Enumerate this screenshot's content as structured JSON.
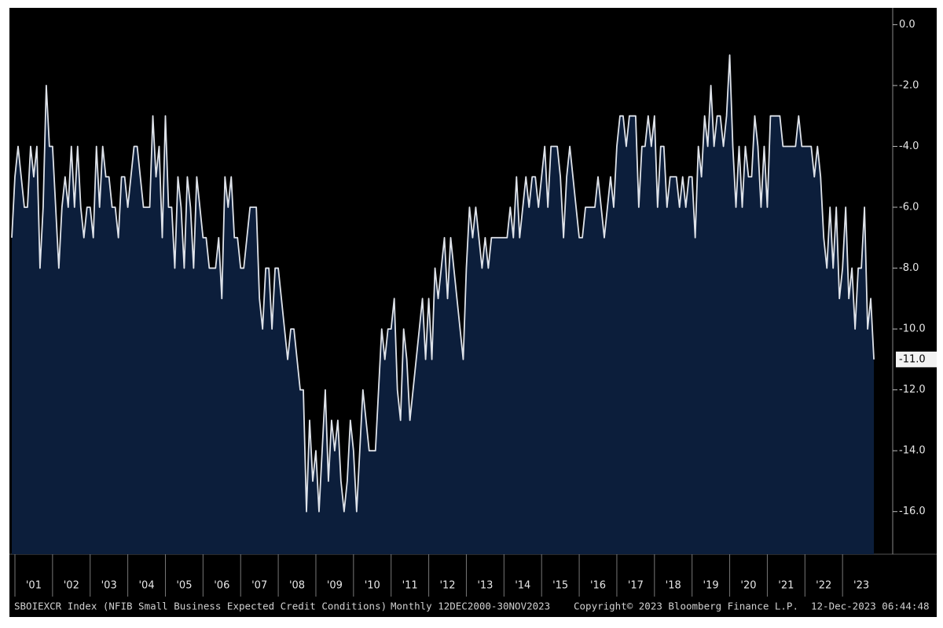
{
  "chart_data": {
    "type": "area",
    "series": [
      {
        "name": "SBOIEXCR Index",
        "color": "#dfe3ea",
        "fill": "#0c1e3b",
        "values": [
          -7,
          -5,
          -4,
          -5,
          -6,
          -6,
          -4,
          -5,
          -4,
          -8,
          -6,
          -2,
          -4,
          -4,
          -6,
          -8,
          -6,
          -5,
          -6,
          -4,
          -6,
          -4,
          -6,
          -7,
          -6,
          -6,
          -7,
          -4,
          -6,
          -4,
          -5,
          -5,
          -6,
          -6,
          -7,
          -5,
          -5,
          -6,
          -5,
          -4,
          -4,
          -5,
          -6,
          -6,
          -6,
          -3,
          -5,
          -4,
          -7,
          -3,
          -6,
          -6,
          -8,
          -5,
          -6,
          -8,
          -5,
          -6,
          -8,
          -5,
          -6,
          -7,
          -7,
          -8,
          -8,
          -8,
          -7,
          -9,
          -5,
          -6,
          -5,
          -7,
          -7,
          -8,
          -8,
          -7,
          -6,
          -6,
          -6,
          -9,
          -10,
          -8,
          -8,
          -10,
          -8,
          -8,
          -9,
          -10,
          -11,
          -10,
          -10,
          -11,
          -12,
          -12,
          -16,
          -13,
          -15,
          -14,
          -16,
          -14,
          -12,
          -15,
          -13,
          -14,
          -13,
          -15,
          -16,
          -15,
          -13,
          -14,
          -16,
          -14,
          -12,
          -13,
          -14,
          -14,
          -14,
          -12,
          -10,
          -11,
          -10,
          -10,
          -9,
          -12,
          -13,
          -10,
          -11,
          -13,
          -12,
          -11,
          -10,
          -9,
          -11,
          -9,
          -11,
          -8,
          -9,
          -8,
          -7,
          -9,
          -7,
          -8,
          -9,
          -10,
          -11,
          -8,
          -6,
          -7,
          -6,
          -7,
          -8,
          -7,
          -8,
          -7,
          -7,
          -7,
          -7,
          -7,
          -7,
          -6,
          -7,
          -5,
          -7,
          -6,
          -5,
          -6,
          -5,
          -5,
          -6,
          -5,
          -4,
          -6,
          -4,
          -4,
          -4,
          -5,
          -7,
          -5,
          -4,
          -5,
          -6,
          -7,
          -7,
          -6,
          -6,
          -6,
          -6,
          -5,
          -6,
          -7,
          -6,
          -5,
          -6,
          -4,
          -3,
          -3,
          -4,
          -3,
          -3,
          -3,
          -6,
          -4,
          -4,
          -3,
          -4,
          -3,
          -6,
          -4,
          -4,
          -6,
          -5,
          -5,
          -5,
          -6,
          -5,
          -6,
          -5,
          -5,
          -7,
          -4,
          -5,
          -3,
          -4,
          -2,
          -4,
          -3,
          -3,
          -4,
          -3,
          -1,
          -4,
          -6,
          -4,
          -6,
          -4,
          -5,
          -5,
          -3,
          -4,
          -6,
          -4,
          -6,
          -3,
          -3,
          -3,
          -3,
          -4,
          -4,
          -4,
          -4,
          -4,
          -3,
          -4,
          -4,
          -4,
          -4,
          -5,
          -4,
          -5,
          -7,
          -8,
          -6,
          -8,
          -6,
          -9,
          -8,
          -6,
          -9,
          -8,
          -10,
          -8,
          -8,
          -6,
          -10,
          -9,
          -11
        ]
      }
    ],
    "x": [
      "2000-12",
      "2001-01",
      "2001-02",
      "2001-03",
      "2001-04",
      "2001-05",
      "2001-06",
      "2001-07",
      "2001-08",
      "2001-09",
      "2001-10",
      "2001-11",
      "2001-12",
      "2002-01",
      "2002-02",
      "2002-03",
      "2002-04",
      "2002-05",
      "2002-06",
      "2002-07",
      "2002-08",
      "2002-09",
      "2002-10",
      "2002-11",
      "2002-12",
      "2003-01",
      "2003-02",
      "2003-03",
      "2003-04",
      "2003-05",
      "2003-06",
      "2003-07",
      "2003-08",
      "2003-09",
      "2003-10",
      "2003-11",
      "2003-12",
      "2004-01",
      "2004-02",
      "2004-03",
      "2004-04",
      "2004-05",
      "2004-06",
      "2004-07",
      "2004-08",
      "2004-09",
      "2004-10",
      "2004-11",
      "2004-12",
      "2005-01",
      "2005-02",
      "2005-03",
      "2005-04",
      "2005-05",
      "2005-06",
      "2005-07",
      "2005-08",
      "2005-09",
      "2005-10",
      "2005-11",
      "2005-12",
      "2006-01",
      "2006-02",
      "2006-03",
      "2006-04",
      "2006-05",
      "2006-06",
      "2006-07",
      "2006-08",
      "2006-09",
      "2006-10",
      "2006-11",
      "2006-12",
      "2007-01",
      "2007-02",
      "2007-03",
      "2007-04",
      "2007-05",
      "2007-06",
      "2007-07",
      "2007-08",
      "2007-09",
      "2007-10",
      "2007-11",
      "2007-12",
      "2008-01",
      "2008-02",
      "2008-03",
      "2008-04",
      "2008-05",
      "2008-06",
      "2008-07",
      "2008-08",
      "2008-09",
      "2008-10",
      "2008-11",
      "2008-12",
      "2009-01",
      "2009-02",
      "2009-03",
      "2009-04",
      "2009-05",
      "2009-06",
      "2009-07",
      "2009-08",
      "2009-09",
      "2009-10",
      "2009-11",
      "2009-12",
      "2010-01",
      "2010-02",
      "2010-03",
      "2010-04",
      "2010-05",
      "2010-06",
      "2010-07",
      "2010-08",
      "2010-09",
      "2010-10",
      "2010-11",
      "2010-12",
      "2011-01",
      "2011-02",
      "2011-03",
      "2011-04",
      "2011-05",
      "2011-06",
      "2011-07",
      "2011-08",
      "2011-09",
      "2011-10",
      "2011-11",
      "2011-12",
      "2012-01",
      "2012-02",
      "2012-03",
      "2012-04",
      "2012-05",
      "2012-06",
      "2012-07",
      "2012-08",
      "2012-09",
      "2012-10",
      "2012-11",
      "2012-12",
      "2013-01",
      "2013-02",
      "2013-03",
      "2013-04",
      "2013-05",
      "2013-06",
      "2013-07",
      "2013-08",
      "2013-09",
      "2013-10",
      "2013-11",
      "2013-12",
      "2014-01",
      "2014-02",
      "2014-03",
      "2014-04",
      "2014-05",
      "2014-06",
      "2014-07",
      "2014-08",
      "2014-09",
      "2014-10",
      "2014-11",
      "2014-12",
      "2015-01",
      "2015-02",
      "2015-03",
      "2015-04",
      "2015-05",
      "2015-06",
      "2015-07",
      "2015-08",
      "2015-09",
      "2015-10",
      "2015-11",
      "2015-12",
      "2016-01",
      "2016-02",
      "2016-03",
      "2016-04",
      "2016-05",
      "2016-06",
      "2016-07",
      "2016-08",
      "2016-09",
      "2016-10",
      "2016-11",
      "2016-12",
      "2017-01",
      "2017-02",
      "2017-03",
      "2017-04",
      "2017-05",
      "2017-06",
      "2017-07",
      "2017-08",
      "2017-09",
      "2017-10",
      "2017-11",
      "2017-12",
      "2018-01",
      "2018-02",
      "2018-03",
      "2018-04",
      "2018-05",
      "2018-06",
      "2018-07",
      "2018-08",
      "2018-09",
      "2018-10",
      "2018-11",
      "2018-12",
      "2019-01",
      "2019-02",
      "2019-03",
      "2019-04",
      "2019-05",
      "2019-06",
      "2019-07",
      "2019-08",
      "2019-09",
      "2019-10",
      "2019-11",
      "2019-12",
      "2020-01",
      "2020-02",
      "2020-03",
      "2020-04",
      "2020-05",
      "2020-06",
      "2020-07",
      "2020-08",
      "2020-09",
      "2020-10",
      "2020-11",
      "2020-12",
      "2021-01",
      "2021-02",
      "2021-03",
      "2021-04",
      "2021-05",
      "2021-06",
      "2021-07",
      "2021-08",
      "2021-09",
      "2021-10",
      "2021-11",
      "2021-12",
      "2022-01",
      "2022-02",
      "2022-03",
      "2022-04",
      "2022-05",
      "2022-06",
      "2022-07",
      "2022-08",
      "2022-09",
      "2022-10",
      "2022-11",
      "2022-12",
      "2023-01",
      "2023-02",
      "2023-03",
      "2023-04",
      "2023-05",
      "2023-06",
      "2023-07",
      "2023-08",
      "2023-09",
      "2023-10",
      "2023-11"
    ],
    "xlim": [
      "2000-12",
      "2024-05"
    ],
    "xticks": [
      {
        "value": "2001-01",
        "label": "'01"
      },
      {
        "value": "2002-01",
        "label": "'02"
      },
      {
        "value": "2003-01",
        "label": "'03"
      },
      {
        "value": "2004-01",
        "label": "'04"
      },
      {
        "value": "2005-01",
        "label": "'05"
      },
      {
        "value": "2006-01",
        "label": "'06"
      },
      {
        "value": "2007-01",
        "label": "'07"
      },
      {
        "value": "2008-01",
        "label": "'08"
      },
      {
        "value": "2009-01",
        "label": "'09"
      },
      {
        "value": "2010-01",
        "label": "'10"
      },
      {
        "value": "2011-01",
        "label": "'11"
      },
      {
        "value": "2012-01",
        "label": "'12"
      },
      {
        "value": "2013-01",
        "label": "'13"
      },
      {
        "value": "2014-01",
        "label": "'14"
      },
      {
        "value": "2015-01",
        "label": "'15"
      },
      {
        "value": "2016-01",
        "label": "'16"
      },
      {
        "value": "2017-01",
        "label": "'17"
      },
      {
        "value": "2018-01",
        "label": "'18"
      },
      {
        "value": "2019-01",
        "label": "'19"
      },
      {
        "value": "2020-01",
        "label": "'20"
      },
      {
        "value": "2021-01",
        "label": "'21"
      },
      {
        "value": "2022-01",
        "label": "'22"
      },
      {
        "value": "2023-01",
        "label": "'23"
      }
    ],
    "ylim": [
      -17.4,
      0.5
    ],
    "yticks": [
      {
        "value": 0,
        "label": "0.0"
      },
      {
        "value": -2,
        "label": "-2.0"
      },
      {
        "value": -4,
        "label": "-4.0"
      },
      {
        "value": -6,
        "label": "-6.0"
      },
      {
        "value": -8,
        "label": "-8.0"
      },
      {
        "value": -10,
        "label": "-10.0"
      },
      {
        "value": -12,
        "label": "-12.0"
      },
      {
        "value": -14,
        "label": "-14.0"
      },
      {
        "value": -16,
        "label": "-16.0"
      }
    ],
    "y_axis_side": "right",
    "grid": false,
    "annotations": [
      {
        "x": "2023-11",
        "value": -11,
        "label": "-11.0"
      }
    ],
    "footer": [
      "SBOIEXCR Index (NFIB Small Business Expected Credit Conditions)",
      "Monthly 12DEC2000-30NOV2023",
      "Copyright© 2023 Bloomberg Finance L.P.",
      "12-Dec-2023 06:44:48"
    ]
  }
}
